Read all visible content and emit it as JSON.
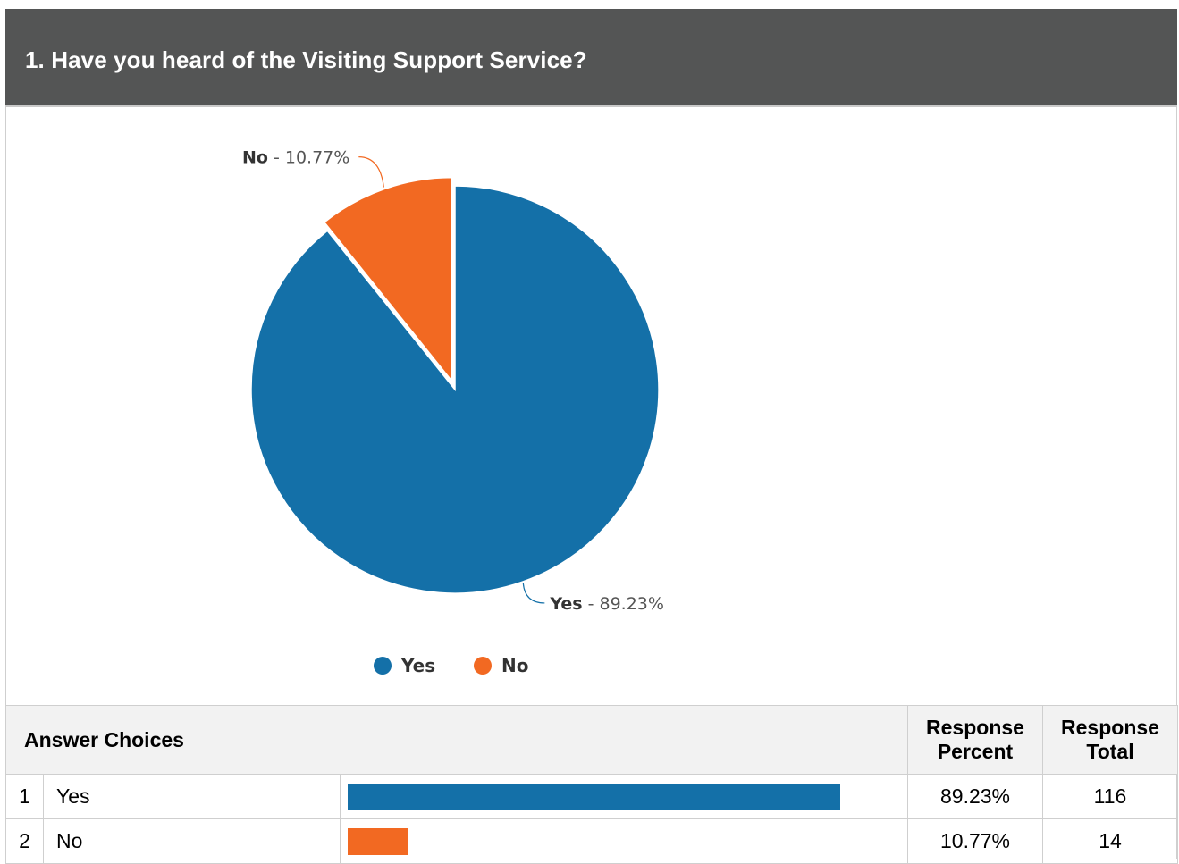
{
  "question": {
    "title": "1. Have you heard of the Visiting Support Service?"
  },
  "chart_data": {
    "type": "pie",
    "title": "",
    "slices": [
      {
        "label": "Yes",
        "value": 89.23,
        "display": " - 89.23%",
        "color": "#1470a8"
      },
      {
        "label": "No",
        "value": 10.77,
        "display": " - 10.77%",
        "color": "#f26922"
      }
    ],
    "legend": {
      "placement": "bottom-center",
      "items": [
        "Yes",
        "No"
      ]
    }
  },
  "table": {
    "headers": {
      "choices": "Answer Choices",
      "percent_line1": "Response",
      "percent_line2": "Percent",
      "total_line1": "Response",
      "total_line2": "Total"
    },
    "rows": [
      {
        "num": "1",
        "label": "Yes",
        "percent": "89.23%",
        "percent_value": 89.23,
        "total": "116",
        "color": "#1470a8"
      },
      {
        "num": "2",
        "label": "No",
        "percent": "10.77%",
        "percent_value": 10.77,
        "total": "14",
        "color": "#f26922"
      }
    ]
  }
}
